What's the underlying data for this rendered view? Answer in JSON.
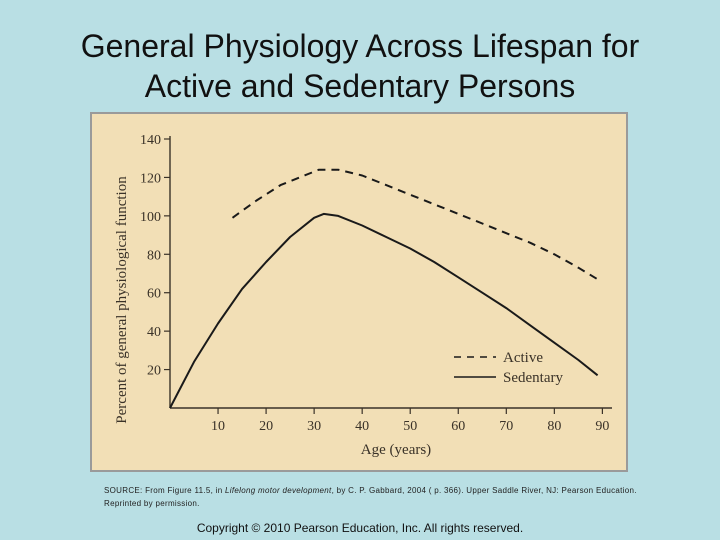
{
  "slide": {
    "title_line1": "General Physiology Across Lifespan for",
    "title_line2": "Active and Sedentary Persons"
  },
  "source": {
    "prefix": "SOURCE: From Figure 11.5, in ",
    "book": "Lifelong motor development",
    "suffix": ", by C. P. Gabbard, 2004 ( p. 366). Upper Saddle River, NJ: Pearson Education.",
    "line2": "Reprinted by permission."
  },
  "footer": {
    "copyright": "Copyright © 2010 Pearson Education, Inc. All rights reserved."
  },
  "colors": {
    "background": "#b9dfe4",
    "figure_bg": "#f2dfb6",
    "line": "#222222"
  },
  "chart_data": {
    "type": "line",
    "title": "",
    "xlabel": "Age (years)",
    "ylabel": "Percent of general physiological function",
    "xlim": [
      0,
      92
    ],
    "ylim": [
      0,
      140
    ],
    "x_ticks": [
      10,
      20,
      30,
      40,
      50,
      60,
      70,
      80,
      90
    ],
    "y_ticks": [
      20,
      40,
      60,
      80,
      100,
      120,
      140
    ],
    "grid": false,
    "legend_position": "bottom-right",
    "series": [
      {
        "name": "Active",
        "style": "dashed",
        "x": [
          13,
          18,
          23,
          28,
          31,
          35,
          40,
          45,
          50,
          55,
          60,
          65,
          70,
          75,
          80,
          85,
          89
        ],
        "y": [
          99,
          108,
          116,
          121,
          124,
          124,
          121,
          116,
          111,
          106,
          101,
          96,
          91,
          86,
          80,
          73,
          67
        ]
      },
      {
        "name": "Sedentary",
        "style": "solid",
        "x": [
          0,
          5,
          10,
          15,
          20,
          25,
          30,
          32,
          35,
          40,
          45,
          50,
          55,
          60,
          65,
          70,
          75,
          80,
          85,
          89
        ],
        "y": [
          0,
          24,
          44,
          62,
          76,
          89,
          99,
          101,
          100,
          95,
          89,
          83,
          76,
          68,
          60,
          52,
          43,
          34,
          25,
          17
        ]
      }
    ]
  }
}
